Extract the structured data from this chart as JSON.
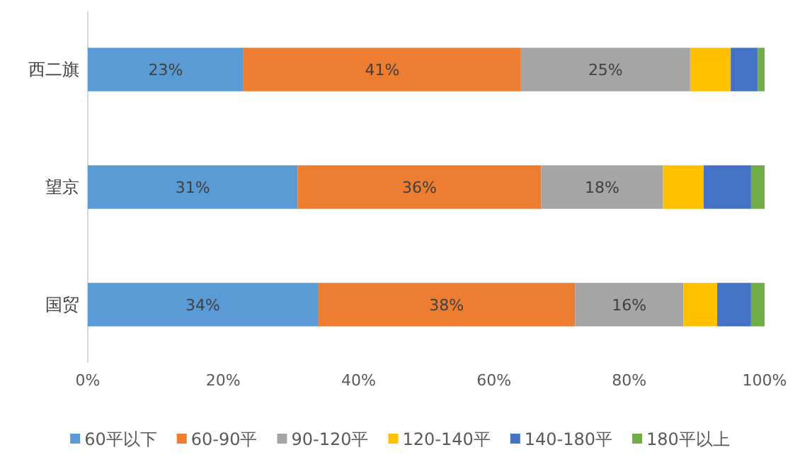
{
  "chart_data": {
    "type": "bar",
    "orientation": "horizontal",
    "stacked": true,
    "categories": [
      "西二旗",
      "望京",
      "国贸"
    ],
    "xlim": [
      0,
      100
    ],
    "xticks": [
      {
        "value": 0,
        "label": "0%"
      },
      {
        "value": 20,
        "label": "20%"
      },
      {
        "value": 40,
        "label": "40%"
      },
      {
        "value": 60,
        "label": "60%"
      },
      {
        "value": 80,
        "label": "80%"
      },
      {
        "value": 100,
        "label": "100%"
      }
    ],
    "legend": "bottom",
    "grid": false,
    "series": [
      {
        "name": "60平以下",
        "color": "#5b9bd5",
        "values": [
          23,
          31,
          34
        ],
        "value_labels": [
          "23%",
          "31%",
          "34%"
        ]
      },
      {
        "name": "60-90平",
        "color": "#ed7d31",
        "values": [
          41,
          36,
          38
        ],
        "value_labels": [
          "41%",
          "36%",
          "38%"
        ]
      },
      {
        "name": "90-120平",
        "color": "#a5a5a5",
        "values": [
          25,
          18,
          16
        ],
        "value_labels": [
          "25%",
          "18%",
          "16%"
        ]
      },
      {
        "name": "120-140平",
        "color": "#ffc000",
        "values": [
          6,
          6,
          5
        ]
      },
      {
        "name": "140-180平",
        "color": "#4472c4",
        "values": [
          4,
          7,
          5
        ]
      },
      {
        "name": "180平以上",
        "color": "#70ad47",
        "values": [
          1,
          2,
          2
        ]
      }
    ]
  }
}
